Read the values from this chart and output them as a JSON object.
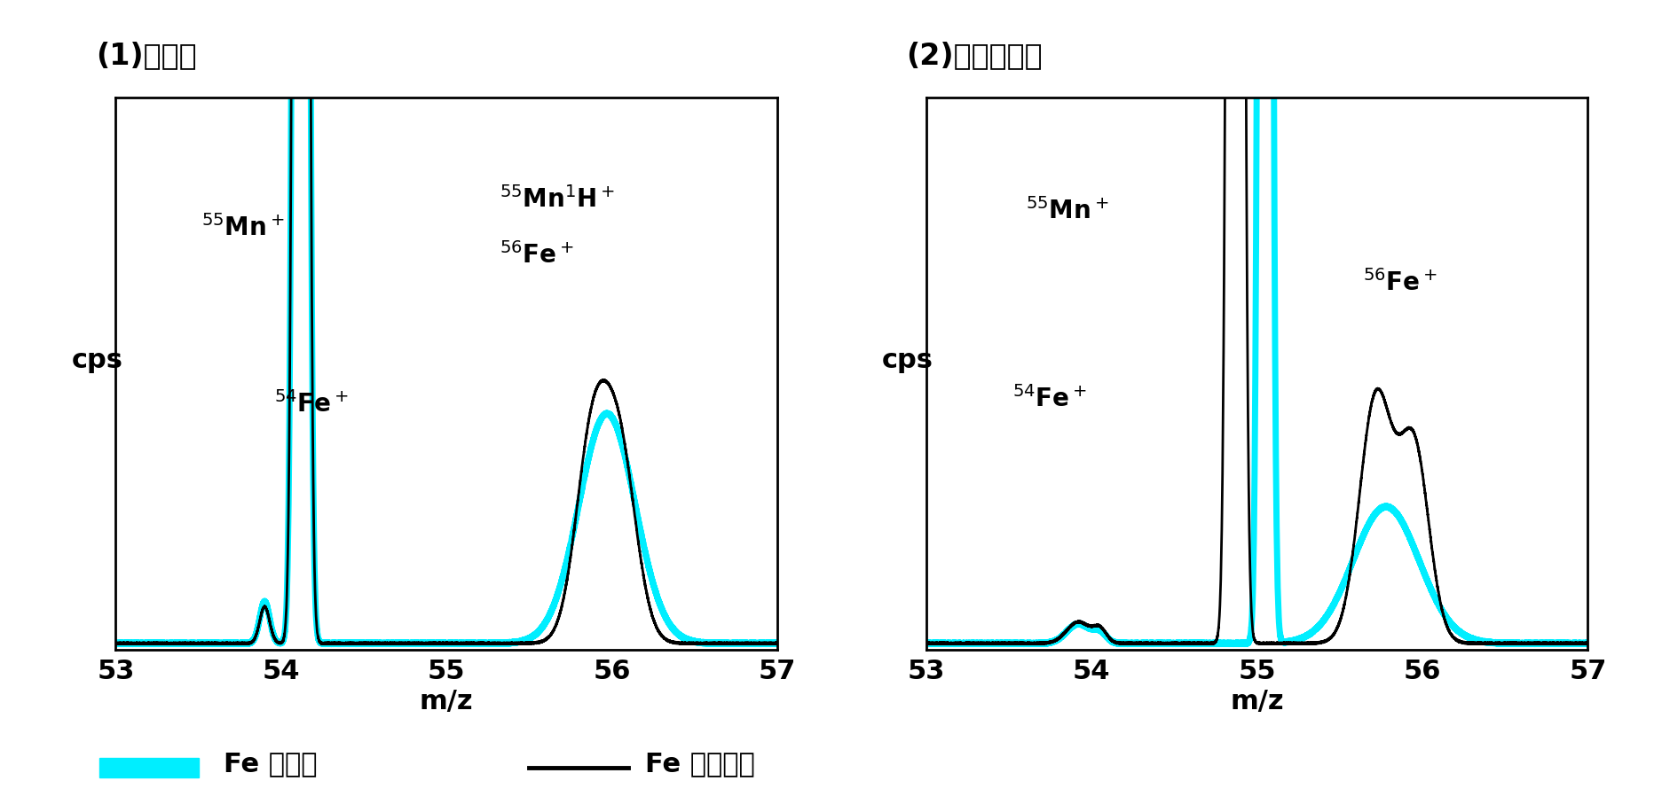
{
  "title1": "(1)希釈法",
  "title2": "(2)固相抜出法",
  "xlabel": "m/z",
  "ylabel": "cps",
  "xmin": 53,
  "xmax": 57,
  "legend_cyan": "Fe 未添加",
  "legend_black": "Fe 標準添加",
  "cyan_color": "#00EEFF",
  "black_color": "#000000",
  "bg_color": "#FFFFFF"
}
